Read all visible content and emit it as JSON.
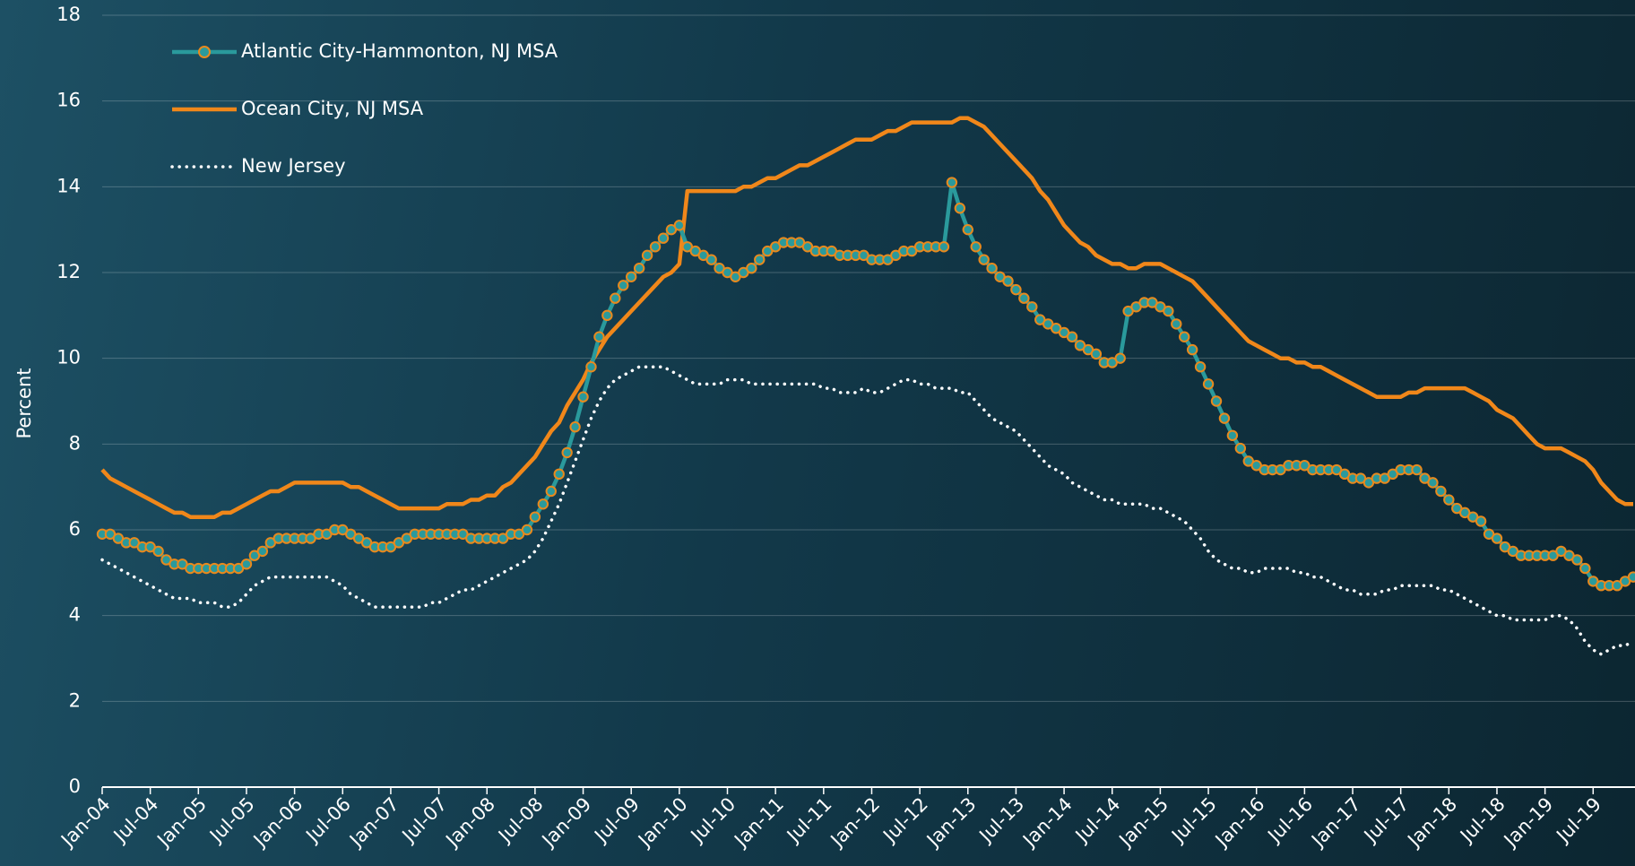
{
  "chart_data": {
    "type": "line",
    "y_label": "Percent",
    "categories": [
      "Jan-04",
      null,
      null,
      null,
      null,
      null,
      "Jul-04",
      null,
      null,
      null,
      null,
      null,
      "Jan-05",
      null,
      null,
      null,
      null,
      null,
      "Jul-05",
      null,
      null,
      null,
      null,
      null,
      "Jan-06",
      null,
      null,
      null,
      null,
      null,
      "Jul-06",
      null,
      null,
      null,
      null,
      null,
      "Jan-07",
      null,
      null,
      null,
      null,
      null,
      "Jul-07",
      null,
      null,
      null,
      null,
      null,
      "Jan-08",
      null,
      null,
      null,
      null,
      null,
      "Jul-08",
      null,
      null,
      null,
      null,
      null,
      "Jan-09",
      null,
      null,
      null,
      null,
      null,
      "Jul-09",
      null,
      null,
      null,
      null,
      null,
      "Jan-10",
      null,
      null,
      null,
      null,
      null,
      "Jul-10",
      null,
      null,
      null,
      null,
      null,
      "Jan-11",
      null,
      null,
      null,
      null,
      null,
      "Jul-11",
      null,
      null,
      null,
      null,
      null,
      "Jan-12",
      null,
      null,
      null,
      null,
      null,
      "Jul-12",
      null,
      null,
      null,
      null,
      null,
      "Jan-13",
      null,
      null,
      null,
      null,
      null,
      "Jul-13",
      null,
      null,
      null,
      null,
      null,
      "Jan-14",
      null,
      null,
      null,
      null,
      null,
      "Jul-14",
      null,
      null,
      null,
      null,
      null,
      "Jan-15",
      null,
      null,
      null,
      null,
      null,
      "Jul-15",
      null,
      null,
      null,
      null,
      null,
      "Jan-16",
      null,
      null,
      null,
      null,
      null,
      "Jul-16",
      null,
      null,
      null,
      null,
      null,
      "Jan-17",
      null,
      null,
      null,
      null,
      null,
      "Jul-17",
      null,
      null,
      null,
      null,
      null,
      "Jan-18",
      null,
      null,
      null,
      null,
      null,
      "Jul-18",
      null,
      null,
      null,
      null,
      null,
      "Jan-19",
      null,
      null,
      null,
      null,
      null,
      "Jul-19",
      null,
      null,
      null,
      null,
      null
    ],
    "series": [
      {
        "name": "Atlantic City-Hammonton, NJ MSA",
        "color": "#2a9a9c",
        "marker_color": "#e8891d",
        "markers": true,
        "values": [
          5.9,
          5.9,
          5.8,
          5.7,
          5.7,
          5.6,
          5.6,
          5.5,
          5.3,
          5.2,
          5.2,
          5.1,
          5.1,
          5.1,
          5.1,
          5.1,
          5.1,
          5.1,
          5.2,
          5.4,
          5.5,
          5.7,
          5.8,
          5.8,
          5.8,
          5.8,
          5.8,
          5.9,
          5.9,
          6.0,
          6.0,
          5.9,
          5.8,
          5.7,
          5.6,
          5.6,
          5.6,
          5.7,
          5.8,
          5.9,
          5.9,
          5.9,
          5.9,
          5.9,
          5.9,
          5.9,
          5.8,
          5.8,
          5.8,
          5.8,
          5.8,
          5.9,
          5.9,
          6.0,
          6.3,
          6.6,
          6.9,
          7.3,
          7.8,
          8.4,
          9.1,
          9.8,
          10.5,
          11.0,
          11.4,
          11.7,
          11.9,
          12.1,
          12.4,
          12.6,
          12.8,
          13.0,
          13.1,
          12.6,
          12.5,
          12.4,
          12.3,
          12.1,
          12.0,
          11.9,
          12.0,
          12.1,
          12.3,
          12.5,
          12.6,
          12.7,
          12.7,
          12.7,
          12.6,
          12.5,
          12.5,
          12.5,
          12.4,
          12.4,
          12.4,
          12.4,
          12.3,
          12.3,
          12.3,
          12.4,
          12.5,
          12.5,
          12.6,
          12.6,
          12.6,
          12.6,
          14.1,
          13.5,
          13.0,
          12.6,
          12.3,
          12.1,
          11.9,
          11.8,
          11.6,
          11.4,
          11.2,
          10.9,
          10.8,
          10.7,
          10.6,
          10.5,
          10.3,
          10.2,
          10.1,
          9.9,
          9.9,
          10.0,
          11.1,
          11.2,
          11.3,
          11.3,
          11.2,
          11.1,
          10.8,
          10.5,
          10.2,
          9.8,
          9.4,
          9.0,
          8.6,
          8.2,
          7.9,
          7.6,
          7.5,
          7.4,
          7.4,
          7.4,
          7.5,
          7.5,
          7.5,
          7.4,
          7.4,
          7.4,
          7.4,
          7.3,
          7.2,
          7.2,
          7.1,
          7.2,
          7.2,
          7.3,
          7.4,
          7.4,
          7.4,
          7.2,
          7.1,
          6.9,
          6.7,
          6.5,
          6.4,
          6.3,
          6.2,
          5.9,
          5.8,
          5.6,
          5.5,
          5.4,
          5.4,
          5.4,
          5.4,
          5.4,
          5.5,
          5.4,
          5.3,
          5.1,
          4.8,
          4.7,
          4.7,
          4.7,
          4.8,
          4.9
        ]
      },
      {
        "name": "Ocean City, NJ MSA",
        "color": "#f0871a",
        "values": [
          7.4,
          7.2,
          7.1,
          7.0,
          6.9,
          6.8,
          6.7,
          6.6,
          6.5,
          6.4,
          6.4,
          6.3,
          6.3,
          6.3,
          6.3,
          6.4,
          6.4,
          6.5,
          6.6,
          6.7,
          6.8,
          6.9,
          6.9,
          7.0,
          7.1,
          7.1,
          7.1,
          7.1,
          7.1,
          7.1,
          7.1,
          7.0,
          7.0,
          6.9,
          6.8,
          6.7,
          6.6,
          6.5,
          6.5,
          6.5,
          6.5,
          6.5,
          6.5,
          6.6,
          6.6,
          6.6,
          6.7,
          6.7,
          6.8,
          6.8,
          7.0,
          7.1,
          7.3,
          7.5,
          7.7,
          8.0,
          8.3,
          8.5,
          8.9,
          9.2,
          9.5,
          9.9,
          10.2,
          10.5,
          10.7,
          10.9,
          11.1,
          11.3,
          11.5,
          11.7,
          11.9,
          12.0,
          12.2,
          13.9,
          13.9,
          13.9,
          13.9,
          13.9,
          13.9,
          13.9,
          14.0,
          14.0,
          14.1,
          14.2,
          14.2,
          14.3,
          14.4,
          14.5,
          14.5,
          14.6,
          14.7,
          14.8,
          14.9,
          15.0,
          15.1,
          15.1,
          15.1,
          15.2,
          15.3,
          15.3,
          15.4,
          15.5,
          15.5,
          15.5,
          15.5,
          15.5,
          15.5,
          15.6,
          15.6,
          15.5,
          15.4,
          15.2,
          15.0,
          14.8,
          14.6,
          14.4,
          14.2,
          13.9,
          13.7,
          13.4,
          13.1,
          12.9,
          12.7,
          12.6,
          12.4,
          12.3,
          12.2,
          12.2,
          12.1,
          12.1,
          12.2,
          12.2,
          12.2,
          12.1,
          12.0,
          11.9,
          11.8,
          11.6,
          11.4,
          11.2,
          11.0,
          10.8,
          10.6,
          10.4,
          10.3,
          10.2,
          10.1,
          10.0,
          10.0,
          9.9,
          9.9,
          9.8,
          9.8,
          9.7,
          9.6,
          9.5,
          9.4,
          9.3,
          9.2,
          9.1,
          9.1,
          9.1,
          9.1,
          9.2,
          9.2,
          9.3,
          9.3,
          9.3,
          9.3,
          9.3,
          9.3,
          9.2,
          9.1,
          9.0,
          8.8,
          8.7,
          8.6,
          8.4,
          8.2,
          8.0,
          7.9,
          7.9,
          7.9,
          7.8,
          7.7,
          7.6,
          7.4,
          7.1,
          6.9,
          6.7,
          6.6,
          6.6
        ]
      },
      {
        "name": "New Jersey",
        "color": "#ffffff",
        "dash": "dotted",
        "values": [
          5.3,
          5.2,
          5.1,
          5.0,
          4.9,
          4.8,
          4.7,
          4.6,
          4.5,
          4.4,
          4.4,
          4.4,
          4.3,
          4.3,
          4.3,
          4.2,
          4.2,
          4.3,
          4.5,
          4.7,
          4.8,
          4.9,
          4.9,
          4.9,
          4.9,
          4.9,
          4.9,
          4.9,
          4.9,
          4.8,
          4.7,
          4.5,
          4.4,
          4.3,
          4.2,
          4.2,
          4.2,
          4.2,
          4.2,
          4.2,
          4.2,
          4.3,
          4.3,
          4.4,
          4.5,
          4.6,
          4.6,
          4.7,
          4.8,
          4.9,
          5.0,
          5.1,
          5.2,
          5.3,
          5.5,
          5.8,
          6.2,
          6.6,
          7.1,
          7.6,
          8.1,
          8.6,
          9.0,
          9.3,
          9.5,
          9.6,
          9.7,
          9.8,
          9.8,
          9.8,
          9.8,
          9.7,
          9.6,
          9.5,
          9.4,
          9.4,
          9.4,
          9.4,
          9.5,
          9.5,
          9.5,
          9.4,
          9.4,
          9.4,
          9.4,
          9.4,
          9.4,
          9.4,
          9.4,
          9.4,
          9.3,
          9.3,
          9.2,
          9.2,
          9.2,
          9.3,
          9.2,
          9.2,
          9.3,
          9.4,
          9.5,
          9.5,
          9.4,
          9.4,
          9.3,
          9.3,
          9.3,
          9.2,
          9.2,
          9.0,
          8.8,
          8.6,
          8.5,
          8.4,
          8.3,
          8.1,
          7.9,
          7.7,
          7.5,
          7.4,
          7.3,
          7.1,
          7.0,
          6.9,
          6.8,
          6.7,
          6.7,
          6.6,
          6.6,
          6.6,
          6.6,
          6.5,
          6.5,
          6.4,
          6.3,
          6.2,
          6.0,
          5.8,
          5.5,
          5.3,
          5.2,
          5.1,
          5.1,
          5.0,
          5.0,
          5.1,
          5.1,
          5.1,
          5.1,
          5.0,
          5.0,
          4.9,
          4.9,
          4.8,
          4.7,
          4.6,
          4.6,
          4.5,
          4.5,
          4.5,
          4.6,
          4.6,
          4.7,
          4.7,
          4.7,
          4.7,
          4.7,
          4.6,
          4.6,
          4.5,
          4.4,
          4.3,
          4.2,
          4.1,
          4.0,
          4.0,
          3.9,
          3.9,
          3.9,
          3.9,
          3.9,
          4.0,
          4.0,
          3.9,
          3.7,
          3.4,
          3.2,
          3.1,
          3.2,
          3.3,
          3.3,
          3.4
        ]
      }
    ],
    "ylim": [
      0,
      18
    ],
    "yticks": [
      0,
      2,
      4,
      6,
      8,
      10,
      12,
      14,
      16,
      18
    ],
    "grid": true,
    "legend": "top-left"
  }
}
